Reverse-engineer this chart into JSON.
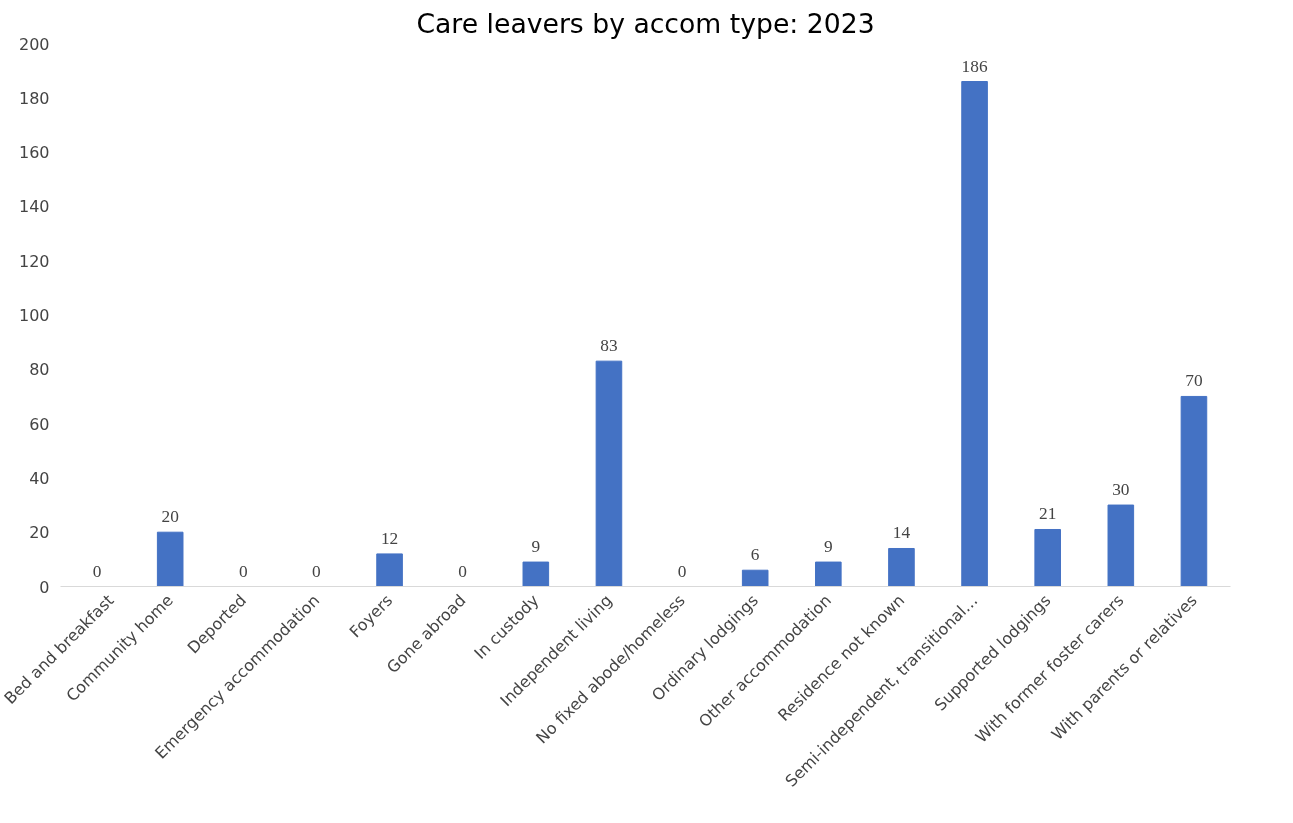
{
  "chart_data": {
    "type": "bar",
    "title": "Care leavers by accom type: 2023",
    "categories": [
      "Bed and breakfast",
      "Community home",
      "Deported",
      "Emergency accommodation",
      "Foyers",
      "Gone abroad",
      "In custody",
      "Independent living",
      "No fixed abode/homeless",
      "Ordinary lodgings",
      "Other accommodation",
      "Residence not known",
      "Semi-independent, transitional…",
      "Supported lodgings",
      "With former foster carers",
      "With parents or relatives"
    ],
    "values": [
      0,
      20,
      0,
      0,
      12,
      0,
      9,
      83,
      0,
      6,
      9,
      14,
      186,
      21,
      30,
      70
    ],
    "color": "#4472c4",
    "ylim": [
      0,
      200
    ],
    "yticks": [
      0,
      20,
      40,
      60,
      80,
      100,
      120,
      140,
      160,
      180,
      200
    ],
    "grid": false,
    "data_labels": true
  }
}
